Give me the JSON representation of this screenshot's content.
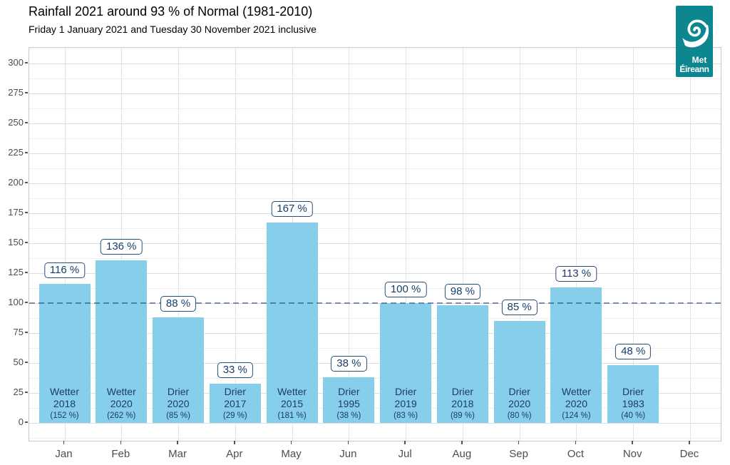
{
  "header": {
    "title": "Rainfall 2021 around 93 % of Normal (1981-2010)",
    "subtitle": "Friday 1 January 2021 and Tuesday 30 November 2021 inclusive"
  },
  "logo": {
    "line1": "Met",
    "line2": "Éireann",
    "teal": "#0e8690"
  },
  "chart_data": {
    "type": "bar",
    "title": "Rainfall 2021 around 93 % of Normal (1981-2010)",
    "subtitle": "Friday 1 January 2021 and Tuesday 30 November 2021 inclusive",
    "categories": [
      "Jan",
      "Feb",
      "Mar",
      "Apr",
      "May",
      "Jun",
      "Jul",
      "Aug",
      "Sep",
      "Oct",
      "Nov",
      "Dec"
    ],
    "values": [
      116,
      136,
      88,
      33,
      167,
      38,
      100,
      98,
      85,
      113,
      48,
      null
    ],
    "value_labels": [
      "116 %",
      "136 %",
      "88 %",
      "33 %",
      "167 %",
      "38 %",
      "100 %",
      "98 %",
      "85 %",
      "113 %",
      "48 %",
      null
    ],
    "annotations": [
      {
        "record_type": "Wetter",
        "record_year": "2018",
        "record_pct": "(152 %)"
      },
      {
        "record_type": "Wetter",
        "record_year": "2020",
        "record_pct": "(262 %)"
      },
      {
        "record_type": "Drier",
        "record_year": "2020",
        "record_pct": "(85 %)"
      },
      {
        "record_type": "Drier",
        "record_year": "2017",
        "record_pct": "(29 %)"
      },
      {
        "record_type": "Wetter",
        "record_year": "2015",
        "record_pct": "(181 %)"
      },
      {
        "record_type": "Drier",
        "record_year": "1995",
        "record_pct": "(38 %)"
      },
      {
        "record_type": "Drier",
        "record_year": "2019",
        "record_pct": "(83 %)"
      },
      {
        "record_type": "Drier",
        "record_year": "2018",
        "record_pct": "(89 %)"
      },
      {
        "record_type": "Drier",
        "record_year": "2020",
        "record_pct": "(80 %)"
      },
      {
        "record_type": "Wetter",
        "record_year": "2020",
        "record_pct": "(124 %)"
      },
      {
        "record_type": "Drier",
        "record_year": "1983",
        "record_pct": "(40 %)"
      },
      null
    ],
    "reference_line": {
      "value": 100,
      "style": "dashed"
    },
    "y_axis": {
      "min": 0,
      "max": 300,
      "tick_step": 25,
      "minor_step": 12.5
    },
    "xlabel": "",
    "ylabel": "",
    "grid": true,
    "legend": false,
    "colors": {
      "bar": "#87CEEB",
      "annotation_text": "#1b3c66",
      "value_text": "#173e6b",
      "value_box_border": "#2a4d74",
      "reference_line": "#3c6490",
      "axis_text": "#4d4d4d",
      "logo_teal": "#0e8690"
    }
  }
}
